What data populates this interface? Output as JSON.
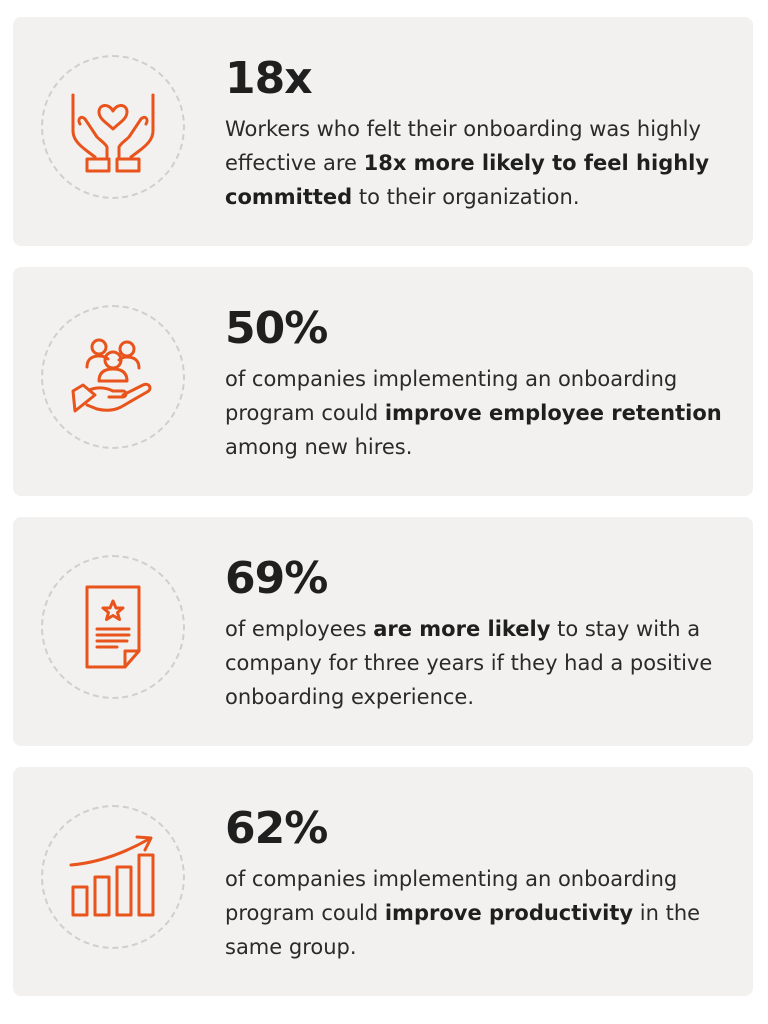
{
  "accent_color": "#e8541b",
  "stats": [
    {
      "icon": "heart-in-hands-icon",
      "value": "18x",
      "text_before": "Workers who felt their onboarding was highly effective are ",
      "text_bold": "18x more likely to feel highly committed",
      "text_after": " to their organization."
    },
    {
      "icon": "people-in-hand-icon",
      "value": "50%",
      "text_before": "of companies implementing an onboarding program could ",
      "text_bold": "improve employee retention",
      "text_after": " among new hires."
    },
    {
      "icon": "certificate-document-icon",
      "value": "69%",
      "text_before": "of employees ",
      "text_bold": "are more likely",
      "text_after": " to stay with a company for three years if they had a positive onboarding experience."
    },
    {
      "icon": "growth-bar-chart-icon",
      "value": "62%",
      "text_before": "of companies implementing an onboarding program could ",
      "text_bold": "improve productivity",
      "text_after": " in the same group."
    }
  ]
}
